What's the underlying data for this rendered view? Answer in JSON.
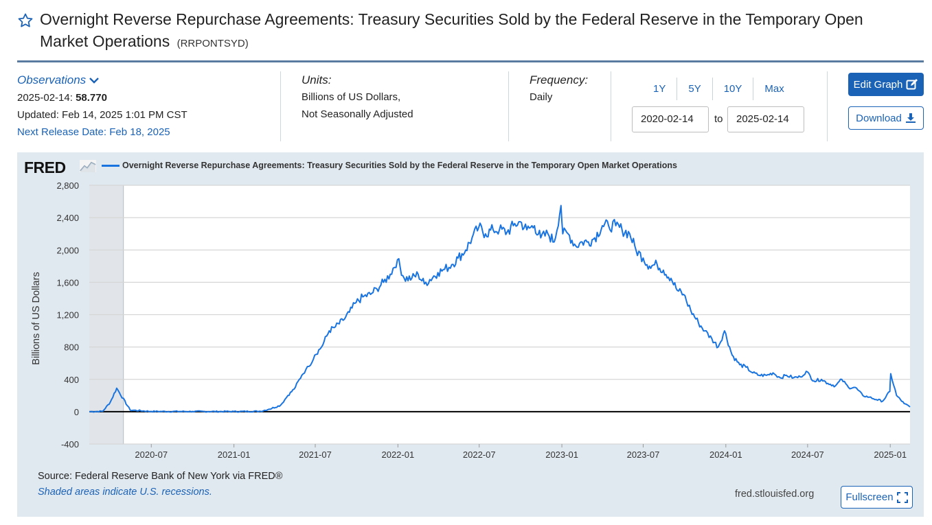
{
  "header": {
    "title": "Overnight Reverse Repurchase Agreements: Treasury Securities Sold by the Federal Reserve in the Temporary Open Market Operations",
    "series_id": "(RRPONTSYD)",
    "star_icon": "star-outline-icon"
  },
  "observations": {
    "label": "Observations",
    "date": "2025-02-14:",
    "value": "58.770",
    "updated": "Updated: Feb 14, 2025 1:01 PM CST",
    "next_release": "Next Release Date: Feb 18, 2025"
  },
  "units": {
    "label": "Units:",
    "line1": "Billions of US Dollars,",
    "line2": "Not Seasonally Adjusted"
  },
  "frequency": {
    "label": "Frequency:",
    "value": "Daily"
  },
  "range": {
    "buttons": [
      "1Y",
      "5Y",
      "10Y",
      "Max"
    ],
    "start": "2020-02-14",
    "to": "to",
    "end": "2025-02-14"
  },
  "actions": {
    "edit": "Edit Graph",
    "download": "Download",
    "fullscreen": "Fullscreen"
  },
  "graph": {
    "logo": "FRED",
    "source": "Source: Federal Reserve Bank of New York via FRED®",
    "recession_note": "Shaded areas indicate U.S. recessions.",
    "url": "fred.stlouisfed.org"
  },
  "colors": {
    "accent": "#1a62b6",
    "line": "#1a74e0",
    "panel": "#e1e9f0",
    "recession": "#e1e5e9"
  },
  "chart_data": {
    "type": "line",
    "title": "Overnight Reverse Repurchase Agreements: Treasury Securities Sold by the Federal Reserve in the Temporary Open Market Operations",
    "ylabel": "Billions of US Dollars",
    "xlabel": "",
    "ylim": [
      -400,
      2800
    ],
    "yticks": [
      -400,
      0,
      400,
      800,
      1200,
      1600,
      2000,
      2400,
      2800
    ],
    "ytick_labels": [
      "-400",
      "0",
      "400",
      "800",
      "1,200",
      "1,600",
      "2,000",
      "2,400",
      "2,800"
    ],
    "xlim": [
      "2020-02-14",
      "2025-02-14"
    ],
    "xticks": [
      "2020-07",
      "2021-01",
      "2021-07",
      "2022-01",
      "2022-07",
      "2023-01",
      "2023-07",
      "2024-01",
      "2024-07",
      "2025-01"
    ],
    "recessions": [
      {
        "start": "2020-02-14",
        "end": "2020-04-30"
      }
    ],
    "grid": true,
    "legend": "top-left",
    "series": [
      {
        "name": "RRPONTSYD",
        "x": [
          "2020-02-14",
          "2020-03-15",
          "2020-04-01",
          "2020-04-15",
          "2020-05-15",
          "2020-07-01",
          "2020-10-01",
          "2021-01-01",
          "2021-03-01",
          "2021-03-20",
          "2021-04-15",
          "2021-05-01",
          "2021-05-15",
          "2021-06-01",
          "2021-06-10",
          "2021-06-17",
          "2021-06-30",
          "2021-07-15",
          "2021-08-01",
          "2021-08-15",
          "2021-09-01",
          "2021-09-15",
          "2021-09-30",
          "2021-10-15",
          "2021-11-01",
          "2021-11-15",
          "2021-11-30",
          "2021-12-15",
          "2021-12-31",
          "2022-01-15",
          "2022-02-01",
          "2022-02-15",
          "2022-03-01",
          "2022-03-31",
          "2022-04-15",
          "2022-05-01",
          "2022-05-15",
          "2022-06-01",
          "2022-06-15",
          "2022-06-30",
          "2022-07-15",
          "2022-08-01",
          "2022-08-15",
          "2022-09-01",
          "2022-09-15",
          "2022-09-30",
          "2022-10-15",
          "2022-11-01",
          "2022-11-15",
          "2022-12-01",
          "2022-12-15",
          "2022-12-30",
          "2023-01-03",
          "2023-01-15",
          "2023-02-01",
          "2023-02-15",
          "2023-03-01",
          "2023-03-15",
          "2023-04-01",
          "2023-04-15",
          "2023-05-01",
          "2023-05-15",
          "2023-06-01",
          "2023-06-15",
          "2023-07-01",
          "2023-07-15",
          "2023-08-01",
          "2023-08-15",
          "2023-09-01",
          "2023-09-15",
          "2023-09-29",
          "2023-10-15",
          "2023-11-01",
          "2023-11-15",
          "2023-12-01",
          "2023-12-15",
          "2023-12-29",
          "2024-01-15",
          "2024-02-01",
          "2024-02-15",
          "2024-03-01",
          "2024-03-15",
          "2024-04-01",
          "2024-04-15",
          "2024-05-01",
          "2024-05-15",
          "2024-05-31",
          "2024-06-15",
          "2024-06-28",
          "2024-07-15",
          "2024-08-01",
          "2024-08-15",
          "2024-09-01",
          "2024-09-15",
          "2024-09-30",
          "2024-10-15",
          "2024-11-01",
          "2024-11-15",
          "2024-12-01",
          "2024-12-15",
          "2024-12-31",
          "2025-01-02",
          "2025-01-15",
          "2025-02-01",
          "2025-02-14"
        ],
        "values": [
          0,
          5,
          120,
          290,
          20,
          3,
          2,
          2,
          5,
          30,
          80,
          200,
          280,
          450,
          520,
          560,
          700,
          800,
          1000,
          1050,
          1130,
          1230,
          1350,
          1420,
          1450,
          1520,
          1600,
          1700,
          1880,
          1650,
          1650,
          1700,
          1580,
          1720,
          1760,
          1820,
          1900,
          2000,
          2150,
          2280,
          2200,
          2250,
          2250,
          2220,
          2300,
          2350,
          2250,
          2300,
          2150,
          2200,
          2100,
          2550,
          2200,
          2200,
          2050,
          2100,
          2100,
          2150,
          2300,
          2300,
          2300,
          2250,
          2200,
          2000,
          1900,
          1800,
          1820,
          1750,
          1650,
          1500,
          1450,
          1250,
          1100,
          1000,
          900,
          800,
          1000,
          700,
          580,
          550,
          480,
          450,
          450,
          480,
          420,
          450,
          420,
          430,
          500,
          380,
          400,
          350,
          320,
          400,
          300,
          300,
          200,
          180,
          150,
          130,
          250,
          470,
          200,
          100,
          58.77
        ]
      }
    ]
  }
}
